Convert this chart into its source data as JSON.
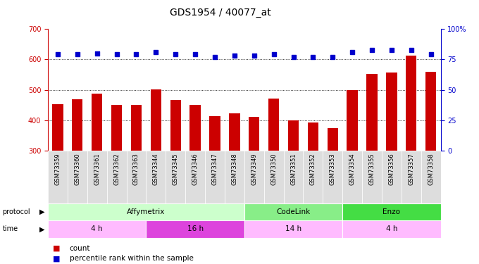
{
  "title": "GDS1954 / 40077_at",
  "samples": [
    "GSM73359",
    "GSM73360",
    "GSM73361",
    "GSM73362",
    "GSM73363",
    "GSM73344",
    "GSM73345",
    "GSM73346",
    "GSM73347",
    "GSM73348",
    "GSM73349",
    "GSM73350",
    "GSM73351",
    "GSM73352",
    "GSM73353",
    "GSM73354",
    "GSM73355",
    "GSM73356",
    "GSM73357",
    "GSM73358"
  ],
  "counts": [
    452,
    468,
    487,
    451,
    451,
    502,
    467,
    451,
    414,
    422,
    410,
    472,
    400,
    393,
    374,
    500,
    553,
    557,
    613,
    558
  ],
  "percentiles": [
    79,
    79,
    80,
    79,
    79,
    81,
    79,
    79,
    77,
    78,
    78,
    79,
    77,
    77,
    77,
    81,
    83,
    83,
    83,
    79
  ],
  "bar_color": "#cc0000",
  "dot_color": "#0000cc",
  "ylim_left": [
    300,
    700
  ],
  "ylim_right": [
    0,
    100
  ],
  "yticks_left": [
    300,
    400,
    500,
    600,
    700
  ],
  "yticks_right": [
    0,
    25,
    50,
    75,
    100
  ],
  "grid_lines": [
    400,
    500,
    600
  ],
  "protocol_groups": [
    {
      "label": "Affymetrix",
      "start": 0,
      "end": 10,
      "color": "#ccffcc"
    },
    {
      "label": "CodeLink",
      "start": 10,
      "end": 15,
      "color": "#88ee88"
    },
    {
      "label": "Enzo",
      "start": 15,
      "end": 20,
      "color": "#44dd44"
    }
  ],
  "time_groups": [
    {
      "label": "4 h",
      "start": 0,
      "end": 5,
      "color": "#ffbbff"
    },
    {
      "label": "16 h",
      "start": 5,
      "end": 10,
      "color": "#dd44dd"
    },
    {
      "label": "14 h",
      "start": 10,
      "end": 15,
      "color": "#ffbbff"
    },
    {
      "label": "4 h",
      "start": 15,
      "end": 20,
      "color": "#ffbbff"
    }
  ],
  "legend_count_label": "count",
  "legend_pct_label": "percentile rank within the sample",
  "bg_color": "#ffffff",
  "axis_label_color_left": "#cc0000",
  "axis_label_color_right": "#0000cc",
  "bar_width": 0.55,
  "xtick_bg": "#dddddd"
}
